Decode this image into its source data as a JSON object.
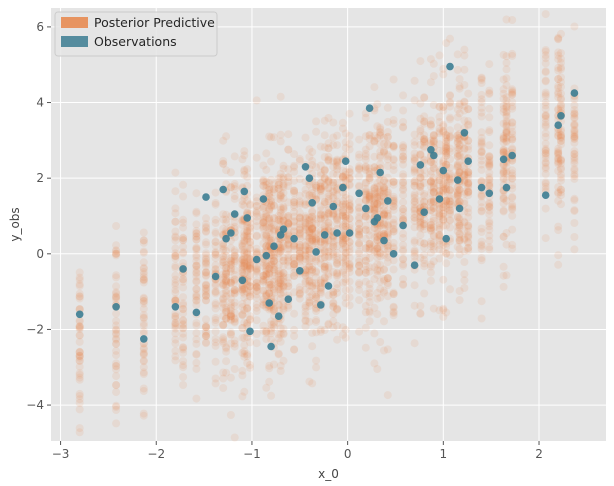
{
  "chart_data": {
    "type": "scatter",
    "xlabel": "x_0",
    "ylabel": "y_obs",
    "xlim": [
      -3.1,
      2.7
    ],
    "ylim": [
      -4.95,
      6.5
    ],
    "xticks": [
      -3,
      -2,
      -1,
      0,
      1,
      2
    ],
    "yticks": [
      -4,
      -2,
      0,
      2,
      4,
      6
    ],
    "grid": true,
    "legend_position": "top-left",
    "background": "#e5e5e5",
    "series": [
      {
        "name": "Posterior Predictive",
        "color": "#e8864a",
        "representation": "ensemble",
        "x": [
          -2.8,
          -2.42,
          -2.13,
          -1.8,
          -1.72,
          -1.58,
          -1.48,
          -1.38,
          -1.3,
          -1.27,
          -1.22,
          -1.18,
          -1.1,
          -1.08,
          -1.05,
          -1.02,
          -0.95,
          -0.88,
          -0.85,
          -0.82,
          -0.8,
          -0.77,
          -0.72,
          -0.7,
          -0.67,
          -0.62,
          -0.56,
          -0.5,
          -0.44,
          -0.4,
          -0.37,
          -0.33,
          -0.28,
          -0.24,
          -0.2,
          -0.15,
          -0.11,
          -0.05,
          -0.02,
          0.02,
          0.12,
          0.19,
          0.23,
          0.28,
          0.31,
          0.34,
          0.38,
          0.42,
          0.48,
          0.58,
          0.7,
          0.76,
          0.8,
          0.87,
          0.9,
          0.96,
          1.0,
          1.03,
          1.07,
          1.15,
          1.17,
          1.22,
          1.26,
          1.4,
          1.48,
          1.63,
          1.66,
          1.72,
          2.07,
          2.2,
          2.23,
          2.37
        ],
        "y_mean": [
          -2.3,
          -1.9,
          -1.6,
          -1.1,
          -1.0,
          -0.85,
          -0.75,
          -0.6,
          -0.55,
          -0.5,
          -0.5,
          -0.45,
          -0.35,
          -0.32,
          -0.3,
          -0.28,
          -0.2,
          -0.12,
          -0.1,
          -0.08,
          -0.05,
          -0.02,
          0.03,
          0.05,
          0.08,
          0.12,
          0.18,
          0.24,
          0.3,
          0.33,
          0.36,
          0.4,
          0.45,
          0.48,
          0.52,
          0.58,
          0.62,
          0.68,
          0.7,
          0.74,
          0.85,
          0.92,
          0.96,
          1.0,
          1.04,
          1.07,
          1.11,
          1.15,
          1.22,
          1.32,
          1.45,
          1.52,
          1.55,
          1.62,
          1.65,
          1.72,
          1.76,
          1.79,
          1.83,
          1.92,
          1.94,
          2.0,
          2.04,
          2.2,
          2.28,
          2.44,
          2.48,
          2.55,
          2.93,
          3.07,
          3.1,
          3.26
        ],
        "y_spread": 1.3,
        "samples_per_x": 45
      },
      {
        "name": "Observations",
        "color": "#3c7d92",
        "x": [
          -2.8,
          -2.42,
          -2.13,
          -1.8,
          -1.72,
          -1.58,
          -1.48,
          -1.38,
          -1.3,
          -1.27,
          -1.22,
          -1.18,
          -1.1,
          -1.08,
          -1.05,
          -1.02,
          -0.95,
          -0.88,
          -0.85,
          -0.82,
          -0.8,
          -0.77,
          -0.72,
          -0.7,
          -0.67,
          -0.62,
          -0.56,
          -0.5,
          -0.44,
          -0.4,
          -0.37,
          -0.33,
          -0.28,
          -0.24,
          -0.2,
          -0.15,
          -0.11,
          -0.05,
          -0.02,
          0.02,
          0.12,
          0.19,
          0.23,
          0.28,
          0.31,
          0.34,
          0.38,
          0.42,
          0.48,
          0.58,
          0.7,
          0.76,
          0.8,
          0.87,
          0.9,
          0.96,
          1.0,
          1.03,
          1.07,
          1.15,
          1.17,
          1.22,
          1.26,
          1.4,
          1.48,
          1.63,
          1.66,
          1.72,
          2.07,
          2.2,
          2.23,
          2.37
        ],
        "y": [
          -1.6,
          -1.4,
          -2.25,
          -1.4,
          -0.4,
          -1.55,
          1.5,
          -0.6,
          1.7,
          0.4,
          0.55,
          1.05,
          -0.7,
          1.65,
          0.95,
          -2.05,
          -0.15,
          1.45,
          -0.05,
          -1.3,
          -2.45,
          0.2,
          -1.65,
          0.5,
          0.65,
          -1.2,
          0.4,
          -0.45,
          2.3,
          2.0,
          1.35,
          0.05,
          -1.35,
          0.5,
          -0.85,
          1.25,
          0.55,
          1.75,
          2.45,
          0.55,
          1.6,
          1.2,
          3.85,
          0.85,
          0.95,
          2.15,
          0.35,
          1.4,
          0.0,
          0.75,
          -0.3,
          2.35,
          1.1,
          2.75,
          2.6,
          1.45,
          2.2,
          0.4,
          4.95,
          1.95,
          1.2,
          3.2,
          2.45,
          1.75,
          1.6,
          2.5,
          1.75,
          2.6,
          1.55,
          3.4,
          3.65,
          4.25
        ]
      }
    ]
  }
}
